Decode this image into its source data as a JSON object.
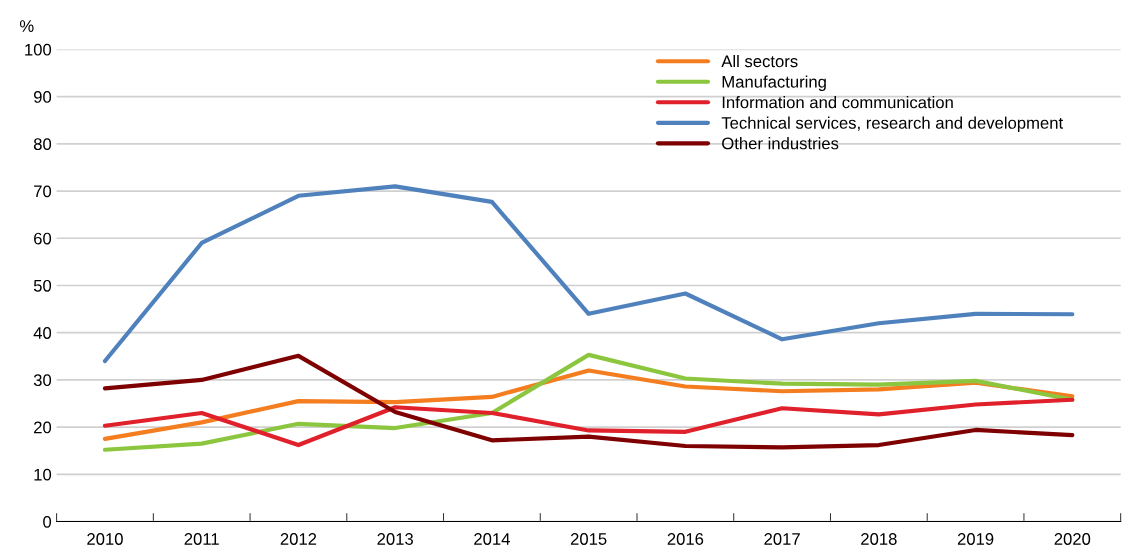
{
  "chart_data": {
    "type": "line",
    "ylabel": "%",
    "categories": [
      "2010",
      "2011",
      "2012",
      "2013",
      "2014",
      "2015",
      "2016",
      "2017",
      "2018",
      "2019",
      "2020"
    ],
    "series": [
      {
        "name": "All sectors",
        "color": "#f47d20",
        "values": [
          17.5,
          21,
          25.5,
          25.3,
          26.4,
          32,
          28.6,
          27.6,
          28,
          29.4,
          26.5
        ]
      },
      {
        "name": "Manufacturing",
        "color": "#8cc63f",
        "values": [
          15.2,
          16.5,
          20.7,
          19.8,
          23,
          35.3,
          30.3,
          29.2,
          29,
          29.8,
          25.8
        ]
      },
      {
        "name": "Information and communication",
        "color": "#e0202a",
        "values": [
          20.3,
          23,
          16.2,
          24.2,
          23,
          19.3,
          19,
          24,
          22.7,
          24.8,
          25.8
        ]
      },
      {
        "name": "Technical services, research and development",
        "color": "#4f81bd",
        "values": [
          34,
          59,
          69,
          71,
          67.7,
          44,
          48.3,
          38.6,
          42,
          44,
          43.9
        ]
      },
      {
        "name": "Other industries",
        "color": "#7f0000",
        "values": [
          28.2,
          30,
          35.1,
          23.2,
          17.2,
          18,
          16,
          15.7,
          16.2,
          19.4,
          18.3
        ]
      }
    ],
    "ylim": [
      0,
      100
    ],
    "yticks": [
      0,
      10,
      20,
      30,
      40,
      50,
      60,
      70,
      80,
      90,
      100
    ],
    "grid": "y",
    "legend": "top right",
    "marker": "none",
    "line_style": "solid"
  }
}
